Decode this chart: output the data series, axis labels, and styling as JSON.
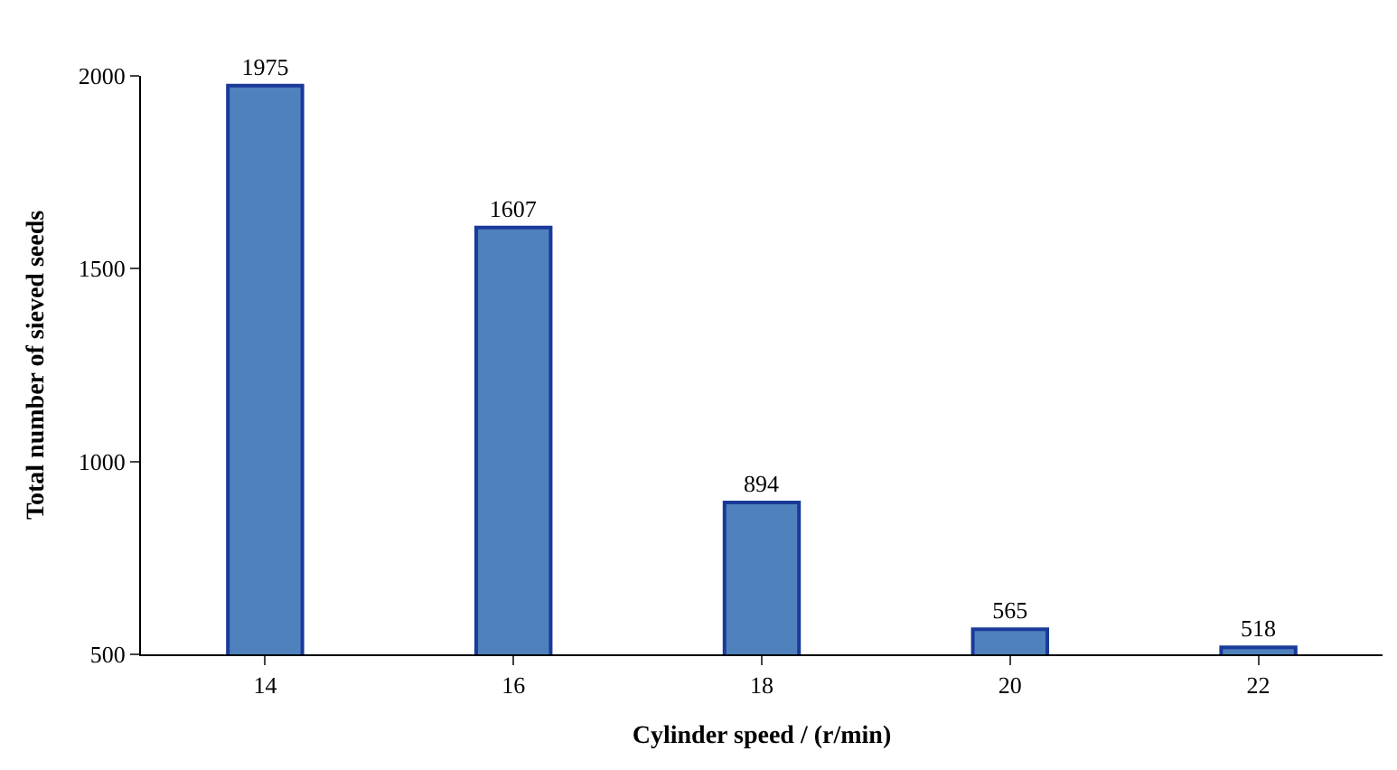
{
  "chart_data": {
    "type": "bar",
    "xlabel": "Cylinder speed / (r/min)",
    "ylabel": "Total number of sieved seeds",
    "categories": [
      "14",
      "16",
      "18",
      "20",
      "22"
    ],
    "values": [
      1975,
      1607,
      894,
      565,
      518
    ],
    "color": "#4f81bd",
    "ylim": [
      500,
      2000
    ],
    "yticks": [
      500,
      1000,
      1500,
      2000
    ],
    "data_labels": true
  }
}
